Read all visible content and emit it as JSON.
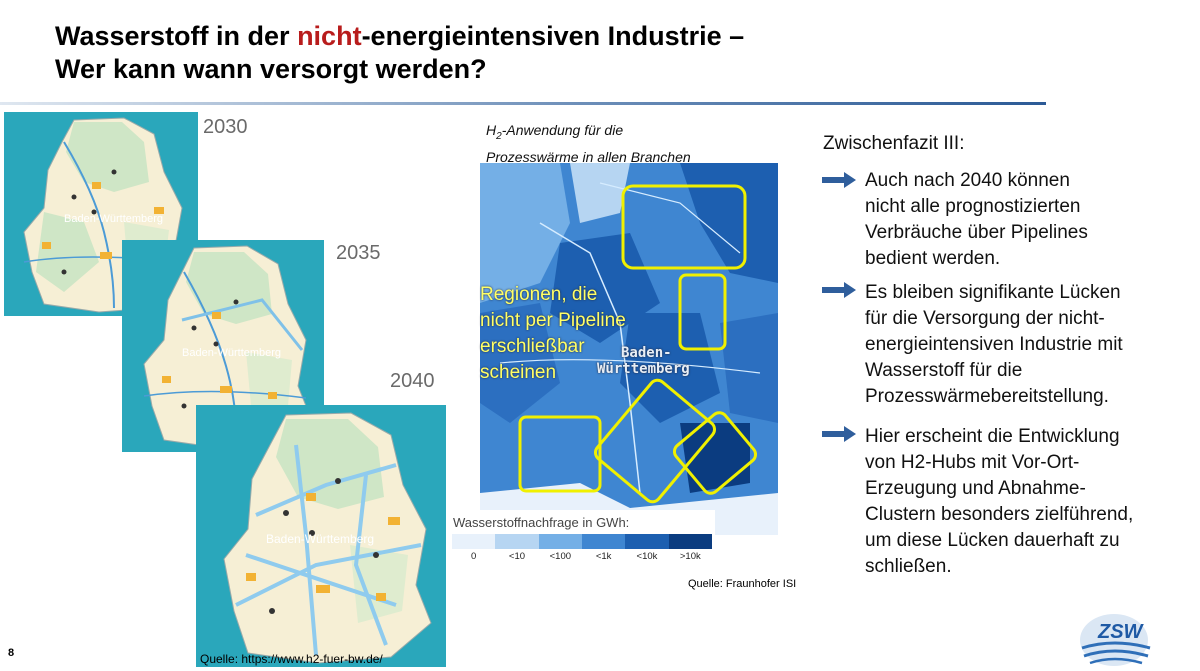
{
  "slide": {
    "title_line1_pre": "Wasserstoff in der ",
    "title_line1_highlight": "nicht",
    "title_line1_post": "-energieintensiven Industrie –",
    "title_line2": "Wer kann wann versorgt werden?",
    "page_number": "8"
  },
  "maps": {
    "years": [
      "2030",
      "2035",
      "2040"
    ],
    "source": "Quelle: https://www.h2-fuer-bw.de/",
    "label_land": "Baden-Württemberg"
  },
  "heatmap": {
    "title_prefix": "H",
    "title_sub": "2",
    "title_line1": "-Anwendung für die",
    "title_line2": "Prozesswärme in allen Branchen",
    "overlay_lines": [
      "Regionen, die",
      "nicht per Pipeline",
      "erschließbar",
      "scheinen"
    ],
    "region_label_line1": "Baden-",
    "region_label_line2": "Württemberg",
    "legend_title": "Wasserstoffnachfrage in GWh:",
    "legend_ticks": [
      "0",
      "<10",
      "<100",
      "<1k",
      "<10k",
      ">10k"
    ],
    "legend_colors": [
      "#e8f1fb",
      "#b6d5f2",
      "#74afe6",
      "#3f86d1",
      "#1d5fb0",
      "#0b3c80"
    ],
    "source": "Quelle: Fraunhofer ISI"
  },
  "fazit": {
    "heading": "Zwischenfazit III:",
    "bullets": [
      [
        "Auch nach 2040 können",
        "nicht alle prognostizierten",
        "Verbräuche über Pipelines",
        "bedient werden."
      ],
      [
        "Es bleiben signifikante Lücken",
        "für die Versorgung der nicht-",
        "energieintensiven Industrie mit",
        "Wasserstoff für die",
        "Prozesswärmebereitstellung."
      ],
      [
        "Hier erscheint die Entwicklung",
        "von H2-Hubs mit Vor-Ort-",
        "Erzeugung und Abnahme-",
        "Clustern besonders zielführend,",
        "um diese Lücken dauerhaft zu",
        "schließen."
      ]
    ]
  },
  "logo": {
    "text": "ZSW"
  },
  "colors": {
    "accent_red": "#b81c1c",
    "arrow_blue": "#2f5e9c",
    "overlay_yellow": "#ffff66",
    "map_water": "#1fa2b8"
  }
}
